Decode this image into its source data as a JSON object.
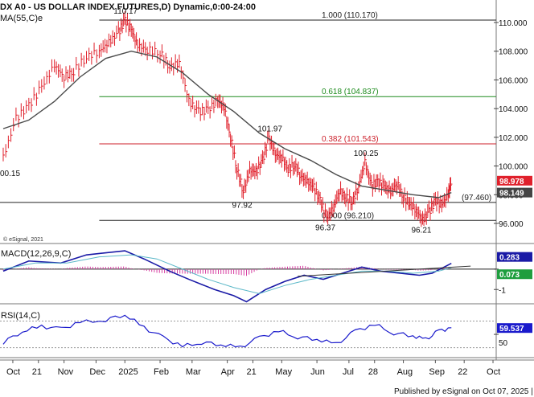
{
  "chart_data": {
    "type": "line",
    "title": "DX A0 - US DOLLAR INDEX FUTURES,D) Dynamic,0:00-24:00",
    "copyright": "© eSignal, 2021",
    "footer": "Published by eSignal on Oct 07, 2025 | www.esignal.com",
    "timeline": {
      "labels": [
        "Oct",
        "21",
        "Nov",
        "Dec",
        "2025",
        "Feb",
        "Mar",
        "Apr",
        "21",
        "May",
        "Jun",
        "Jul",
        "28",
        "Aug",
        "Sep",
        "22",
        "Oct"
      ],
      "label_t": [
        0.015,
        0.055,
        0.095,
        0.145,
        0.19,
        0.245,
        0.295,
        0.35,
        0.39,
        0.435,
        0.49,
        0.54,
        0.58,
        0.625,
        0.675,
        0.72,
        0.765
      ]
    },
    "price_panel": {
      "ylim": [
        94.6,
        111.4
      ],
      "ticks": [
        96,
        98,
        100,
        102,
        104,
        106,
        108,
        110
      ],
      "tick_labels": [
        "96.000",
        "98.000",
        "100.000",
        "102.000",
        "104.000",
        "106.000",
        "108.000",
        "110.000"
      ],
      "ma_label": "MA(55,C)e",
      "left_label": "00.15",
      "price_tag": {
        "value": 98.978,
        "text": "98.978",
        "color": "#e0202b"
      },
      "ma_tag": {
        "value": 98.149,
        "text": "98.149",
        "color": "#444444"
      },
      "series": [
        {
          "kind": "ohlc",
          "color": "#e0202b",
          "closes": [
            [
              0.0,
              100.6
            ],
            [
              0.02,
              103.3
            ],
            [
              0.04,
              104.2
            ],
            [
              0.06,
              105.5
            ],
            [
              0.08,
              107.0
            ],
            [
              0.095,
              106.2
            ],
            [
              0.11,
              106.6
            ],
            [
              0.13,
              107.6
            ],
            [
              0.15,
              108.0
            ],
            [
              0.165,
              108.6
            ],
            [
              0.18,
              109.3
            ],
            [
              0.19,
              110.17
            ],
            [
              0.2,
              109.5
            ],
            [
              0.21,
              108.4
            ],
            [
              0.225,
              108.1
            ],
            [
              0.245,
              107.9
            ],
            [
              0.26,
              106.9
            ],
            [
              0.275,
              107.2
            ],
            [
              0.29,
              104.5
            ],
            [
              0.305,
              103.8
            ],
            [
              0.32,
              103.9
            ],
            [
              0.335,
              104.6
            ],
            [
              0.345,
              104.1
            ],
            [
              0.355,
              102.0
            ],
            [
              0.365,
              99.8
            ],
            [
              0.375,
              98.2
            ],
            [
              0.385,
              99.7
            ],
            [
              0.395,
              99.6
            ],
            [
              0.405,
              100.4
            ],
            [
              0.415,
              101.97
            ],
            [
              0.425,
              100.8
            ],
            [
              0.435,
              100.6
            ],
            [
              0.445,
              99.8
            ],
            [
              0.455,
              100.1
            ],
            [
              0.465,
              99.3
            ],
            [
              0.475,
              98.9
            ],
            [
              0.485,
              98.5
            ],
            [
              0.495,
              97.6
            ],
            [
              0.505,
              96.37
            ],
            [
              0.515,
              97.0
            ],
            [
              0.525,
              98.3
            ],
            [
              0.535,
              97.8
            ],
            [
              0.545,
              97.5
            ],
            [
              0.555,
              98.6
            ],
            [
              0.565,
              100.25
            ],
            [
              0.575,
              98.6
            ],
            [
              0.585,
              98.9
            ],
            [
              0.595,
              98.6
            ],
            [
              0.605,
              98.2
            ],
            [
              0.615,
              98.8
            ],
            [
              0.625,
              97.8
            ],
            [
              0.635,
              97.4
            ],
            [
              0.645,
              96.9
            ],
            [
              0.655,
              96.21
            ],
            [
              0.665,
              96.8
            ],
            [
              0.675,
              97.6
            ],
            [
              0.685,
              97.3
            ],
            [
              0.695,
              98.0
            ],
            [
              0.7,
              98.978
            ]
          ]
        },
        {
          "kind": "line",
          "name": "MA(55,C)e",
          "color": "#4a4a4a",
          "points": [
            [
              0.0,
              102.6
            ],
            [
              0.04,
              103.2
            ],
            [
              0.08,
              104.5
            ],
            [
              0.12,
              106.2
            ],
            [
              0.16,
              107.5
            ],
            [
              0.2,
              108.0
            ],
            [
              0.24,
              107.6
            ],
            [
              0.28,
              106.5
            ],
            [
              0.32,
              105.0
            ],
            [
              0.36,
              103.8
            ],
            [
              0.4,
              102.3
            ],
            [
              0.44,
              101.2
            ],
            [
              0.48,
              100.4
            ],
            [
              0.52,
              99.4
            ],
            [
              0.56,
              98.6
            ],
            [
              0.6,
              98.3
            ],
            [
              0.64,
              98.0
            ],
            [
              0.68,
              97.8
            ],
            [
              0.7,
              98.149
            ]
          ]
        }
      ],
      "levels": [
        {
          "label": "1.000 (110.170)",
          "value": 110.17,
          "color": "#222222"
        },
        {
          "label": "0.618 (104.837)",
          "value": 104.837,
          "color": "#1e8c1e"
        },
        {
          "label": "0.382 (101.543)",
          "value": 101.543,
          "color": "#cc1f2a"
        },
        {
          "label": "0.000 (96.210)",
          "value": 96.21,
          "color": "#222222"
        },
        {
          "label": "(97.460)",
          "value": 97.46,
          "color": "#222222"
        }
      ],
      "annotations": [
        {
          "text": "110.17",
          "t": 0.19,
          "value": 110.17
        },
        {
          "text": "101.97",
          "t": 0.415,
          "value": 101.97
        },
        {
          "text": "100.25",
          "t": 0.565,
          "value": 100.25
        },
        {
          "text": "97.92",
          "t": 0.375,
          "value": 97.92
        },
        {
          "text": "96.37",
          "t": 0.505,
          "value": 96.37
        },
        {
          "text": "96.21",
          "t": 0.655,
          "value": 96.21
        }
      ]
    },
    "macd_panel": {
      "label": "MACD(12,26,9,C)",
      "ylim": [
        -1.7,
        1.1
      ],
      "ticks": [
        0,
        -1
      ],
      "tick_labels": [
        "",
        "-1"
      ],
      "values_shown": {
        "macd": 0.283,
        "signal": 0.073
      },
      "series": [
        {
          "name": "MACD",
          "color": "#1a1aa6",
          "points": [
            [
              0,
              -0.1
            ],
            [
              0.04,
              0.4
            ],
            [
              0.09,
              0.3
            ],
            [
              0.13,
              0.7
            ],
            [
              0.19,
              0.9
            ],
            [
              0.22,
              0.5
            ],
            [
              0.26,
              -0.1
            ],
            [
              0.29,
              -0.5
            ],
            [
              0.33,
              -1.0
            ],
            [
              0.36,
              -1.3
            ],
            [
              0.38,
              -1.6
            ],
            [
              0.41,
              -1.0
            ],
            [
              0.44,
              -0.6
            ],
            [
              0.47,
              -0.3
            ],
            [
              0.5,
              -0.5
            ],
            [
              0.53,
              -0.2
            ],
            [
              0.56,
              0.1
            ],
            [
              0.59,
              -0.1
            ],
            [
              0.62,
              -0.2
            ],
            [
              0.65,
              -0.3
            ],
            [
              0.67,
              -0.2
            ],
            [
              0.7,
              0.283
            ]
          ]
        },
        {
          "name": "Signal",
          "color": "#5bb8c8",
          "points": [
            [
              0,
              0.0
            ],
            [
              0.05,
              0.3
            ],
            [
              0.1,
              0.3
            ],
            [
              0.15,
              0.6
            ],
            [
              0.2,
              0.7
            ],
            [
              0.24,
              0.5
            ],
            [
              0.28,
              0.0
            ],
            [
              0.32,
              -0.5
            ],
            [
              0.36,
              -0.9
            ],
            [
              0.4,
              -1.2
            ],
            [
              0.44,
              -0.8
            ],
            [
              0.48,
              -0.5
            ],
            [
              0.52,
              -0.3
            ],
            [
              0.56,
              -0.1
            ],
            [
              0.6,
              -0.1
            ],
            [
              0.64,
              -0.2
            ],
            [
              0.68,
              -0.1
            ],
            [
              0.7,
              0.073
            ]
          ]
        }
      ],
      "histogram_color": "#d63ca0",
      "trendline": {
        "t1": 0.46,
        "v1": -0.35,
        "t2": 0.73,
        "v2": 0.15,
        "color": "#333333"
      }
    },
    "rsi_panel": {
      "label": "RSI(14,C)",
      "ylim": [
        15,
        90
      ],
      "ticks": [
        50
      ],
      "tick_labels": [
        "50"
      ],
      "value_shown": 59.537,
      "series": [
        {
          "name": "RSI",
          "color": "#1a1acc",
          "points": [
            [
              0,
              38
            ],
            [
              0.03,
              55
            ],
            [
              0.06,
              62
            ],
            [
              0.09,
              58
            ],
            [
              0.12,
              68
            ],
            [
              0.16,
              72
            ],
            [
              0.19,
              80
            ],
            [
              0.22,
              60
            ],
            [
              0.25,
              45
            ],
            [
              0.28,
              32
            ],
            [
              0.31,
              38
            ],
            [
              0.34,
              35
            ],
            [
              0.37,
              30
            ],
            [
              0.4,
              45
            ],
            [
              0.43,
              55
            ],
            [
              0.46,
              46
            ],
            [
              0.49,
              43
            ],
            [
              0.52,
              35
            ],
            [
              0.55,
              55
            ],
            [
              0.58,
              65
            ],
            [
              0.61,
              52
            ],
            [
              0.64,
              48
            ],
            [
              0.66,
              42
            ],
            [
              0.68,
              55
            ],
            [
              0.7,
              60
            ]
          ]
        }
      ],
      "guides": [
        70,
        30
      ]
    }
  }
}
